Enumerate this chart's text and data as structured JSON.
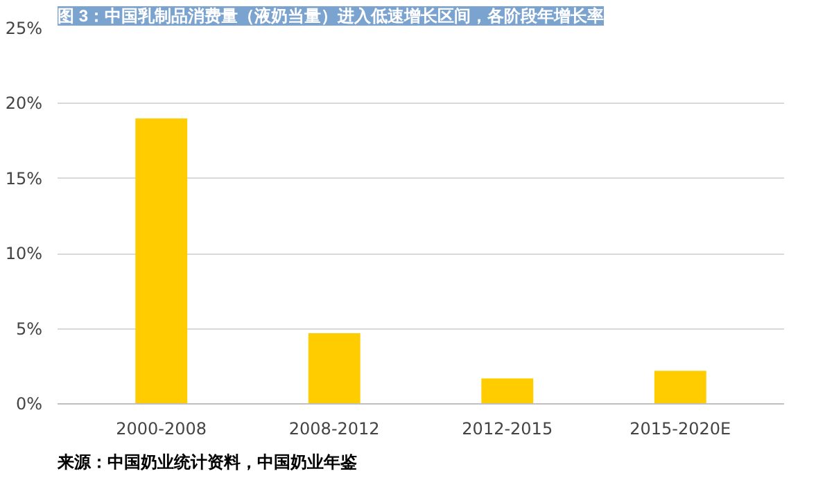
{
  "chart_data": {
    "type": "bar",
    "title": "图 3：中国乳制品消费量（液奶当量）进入低速增长区间，各阶段年增长率",
    "categories": [
      "2000-2008",
      "2008-2012",
      "2012-2015",
      "2015-2020E"
    ],
    "values": [
      19,
      4.7,
      1.7,
      2.2
    ],
    "color": "#ffcc00",
    "ylim": [
      0,
      25
    ],
    "yticks": [
      {
        "value": 0,
        "label": "0%"
      },
      {
        "value": 5,
        "label": "5%"
      },
      {
        "value": 10,
        "label": "10%"
      },
      {
        "value": 15,
        "label": "15%"
      },
      {
        "value": 20,
        "label": "20%"
      },
      {
        "value": 25,
        "label": "25%"
      }
    ],
    "grid": "y",
    "annotations": [
      "来源：中国奶业统计资料，中国奶业年鉴"
    ]
  }
}
